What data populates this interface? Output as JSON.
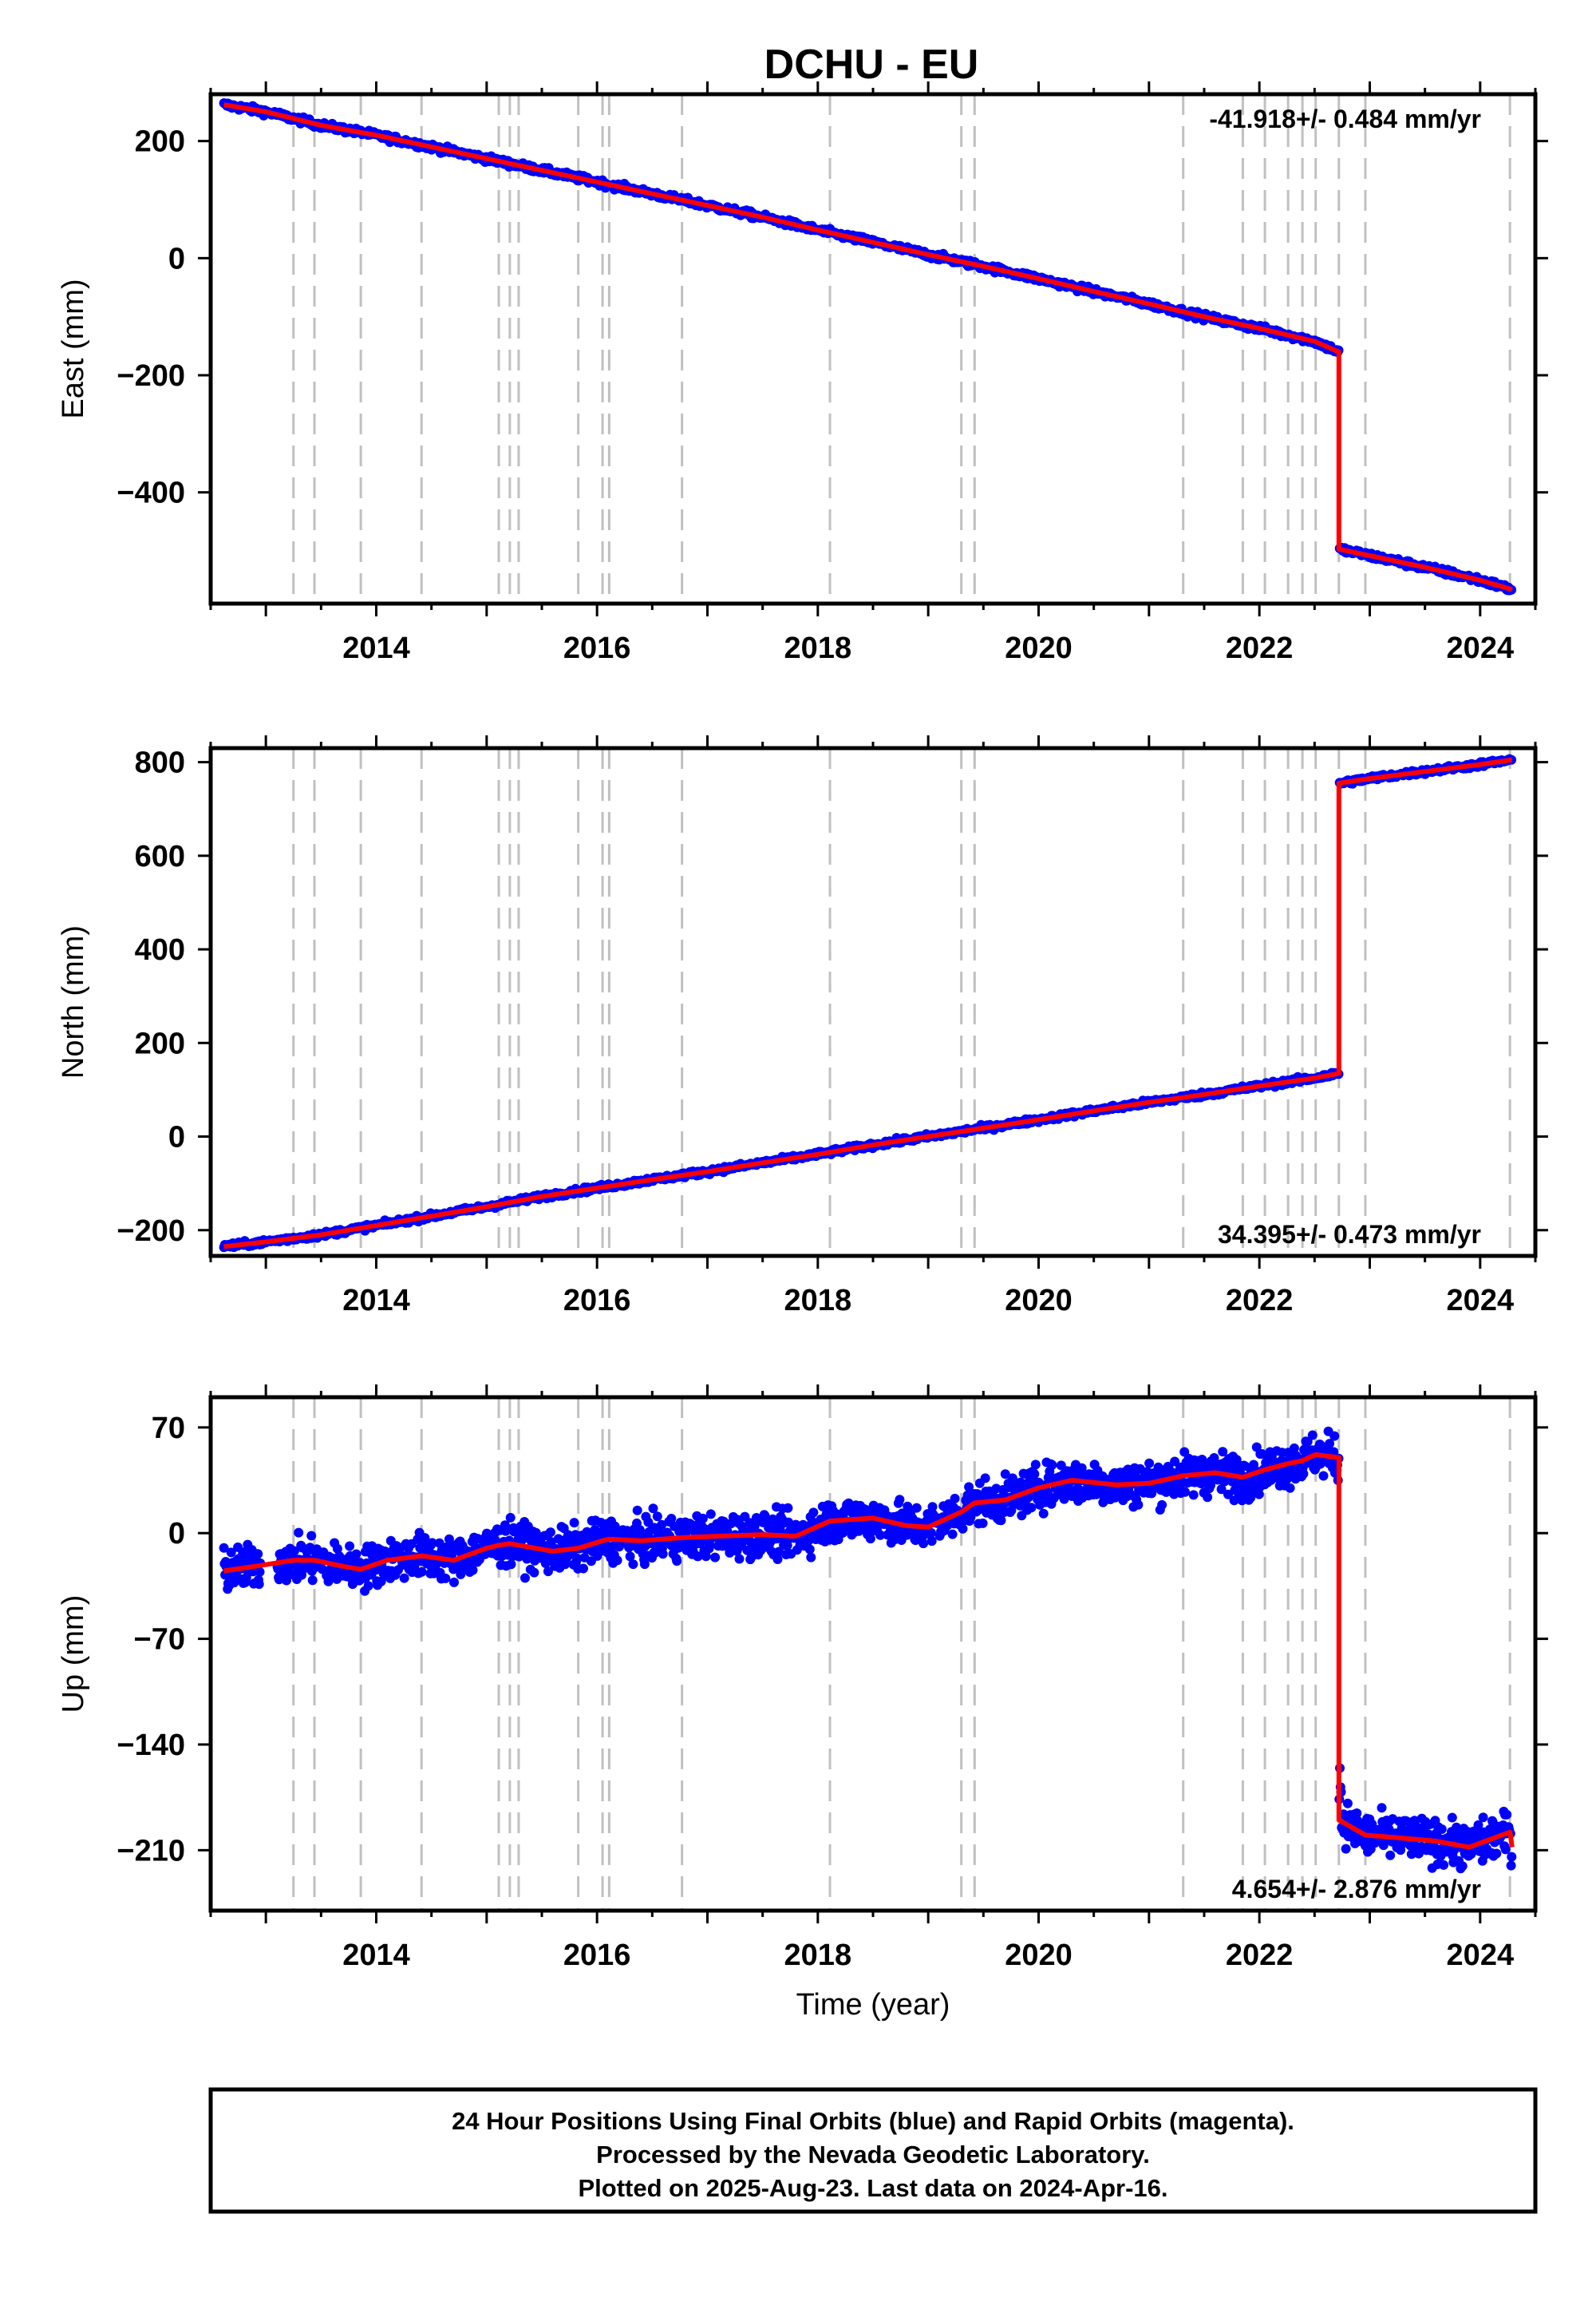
{
  "title": "DCHU - EU",
  "colors": {
    "data_points": "#0000ff",
    "model_line": "#ff0000",
    "offset_lines": "#c0c0c0",
    "frame": "#000000"
  },
  "offset_epochs": [
    2013.25,
    2013.44,
    2013.86,
    2014.41,
    2015.11,
    2015.21,
    2015.29,
    2015.83,
    2016.05,
    2016.11,
    2016.77,
    2018.11,
    2019.3,
    2019.42,
    2021.31,
    2021.85,
    2022.05,
    2022.26,
    2022.39,
    2022.51,
    2022.72,
    2022.96,
    2024.27
  ],
  "footer": {
    "line1": "24 Hour Positions Using Final Orbits (blue) and Rapid Orbits (magenta).",
    "line2": "Processed by the Nevada Geodetic Laboratory.",
    "line3": "Plotted on 2025-Aug-23. Last data on 2024-Apr-16."
  },
  "chart_data": [
    {
      "type": "scatter",
      "panel": "east",
      "ylabel": "East (mm)",
      "xlim": [
        2012.5,
        2024.5
      ],
      "ylim": [
        -590,
        280
      ],
      "xticks": [
        2014,
        2016,
        2018,
        2020,
        2022,
        2024
      ],
      "yticks": [
        200,
        0,
        -200,
        -400
      ],
      "ytick_labels": [
        "200",
        "0",
        "−200",
        "−400"
      ],
      "rate_label": "-41.918+/- 0.484 mm/yr",
      "rate_position": "top-right",
      "model": {
        "x": [
          2012.62,
          2013.0,
          2013.5,
          2014.0,
          2014.5,
          2015.0,
          2015.5,
          2016.0,
          2016.5,
          2017.0,
          2017.5,
          2018.0,
          2018.5,
          2019.0,
          2019.5,
          2020.0,
          2020.5,
          2021.0,
          2021.5,
          2022.0,
          2022.5,
          2022.72,
          2022.72,
          2023.0,
          2023.5,
          2024.0,
          2024.29
        ],
        "y": [
          262,
          250,
          227,
          210,
          190,
          170,
          150,
          130,
          110,
          90,
          70,
          48,
          27,
          6,
          -14,
          -35,
          -57,
          -78,
          -100,
          -120,
          -142,
          -160,
          -497,
          -508,
          -528,
          -550,
          -566
        ]
      },
      "noise_mm": 4
    },
    {
      "type": "scatter",
      "panel": "north",
      "ylabel": "North (mm)",
      "xlim": [
        2012.5,
        2024.5
      ],
      "ylim": [
        -255,
        830
      ],
      "xticks": [
        2014,
        2016,
        2018,
        2020,
        2022,
        2024
      ],
      "yticks": [
        800,
        600,
        400,
        200,
        0,
        -200
      ],
      "ytick_labels": [
        "800",
        "600",
        "400",
        "200",
        "0",
        "−200"
      ],
      "rate_label": "34.395+/- 0.473 mm/yr",
      "rate_position": "bottom-right",
      "model": {
        "x": [
          2012.62,
          2013.0,
          2013.5,
          2014.0,
          2014.5,
          2015.0,
          2015.5,
          2016.0,
          2016.5,
          2017.0,
          2017.5,
          2018.0,
          2018.5,
          2019.0,
          2019.5,
          2020.0,
          2020.5,
          2021.0,
          2021.5,
          2022.0,
          2022.5,
          2022.72,
          2022.72,
          2023.0,
          2023.5,
          2024.0,
          2024.29
        ],
        "y": [
          -235,
          -225,
          -210,
          -190,
          -170,
          -150,
          -128,
          -110,
          -92,
          -75,
          -56,
          -38,
          -18,
          0,
          18,
          36,
          55,
          73,
          90,
          108,
          125,
          135,
          755,
          765,
          780,
          795,
          805
        ]
      },
      "noise_mm": 4
    },
    {
      "type": "scatter",
      "panel": "up",
      "ylabel": "Up (mm)",
      "xlabel": "Time (year)",
      "xlim": [
        2012.5,
        2024.5
      ],
      "ylim": [
        -250,
        90
      ],
      "xticks": [
        2014,
        2016,
        2018,
        2020,
        2022,
        2024
      ],
      "yticks": [
        70,
        0,
        -70,
        -140,
        -210
      ],
      "ytick_labels": [
        "70",
        "0",
        "−70",
        "−140",
        "−210"
      ],
      "rate_label": "4.654+/- 2.876 mm/yr",
      "rate_position": "bottom-right",
      "model": {
        "x": [
          2012.62,
          2012.9,
          2013.25,
          2013.44,
          2013.7,
          2013.86,
          2014.1,
          2014.41,
          2014.7,
          2015.0,
          2015.11,
          2015.21,
          2015.29,
          2015.6,
          2015.83,
          2016.05,
          2016.11,
          2016.4,
          2016.77,
          2017.1,
          2017.5,
          2017.8,
          2018.11,
          2018.5,
          2018.8,
          2019.0,
          2019.3,
          2019.42,
          2019.7,
          2020.0,
          2020.3,
          2020.7,
          2021.0,
          2021.31,
          2021.6,
          2021.85,
          2022.05,
          2022.26,
          2022.39,
          2022.51,
          2022.72,
          2022.72,
          2022.96,
          2023.3,
          2023.6,
          2023.9,
          2024.27,
          2024.29
        ],
        "y": [
          -25,
          -22,
          -18,
          -18,
          -22,
          -24,
          -18,
          -15,
          -18,
          -10,
          -8,
          -7,
          -8,
          -12,
          -10,
          -5,
          -4,
          -5,
          -3,
          -2,
          -1,
          -2,
          8,
          10,
          5,
          4,
          14,
          20,
          22,
          30,
          35,
          32,
          33,
          38,
          40,
          37,
          42,
          46,
          48,
          52,
          50,
          -190,
          -200,
          -202,
          -204,
          -208,
          -198,
          -208
        ]
      },
      "noise_mm": 10
    }
  ]
}
